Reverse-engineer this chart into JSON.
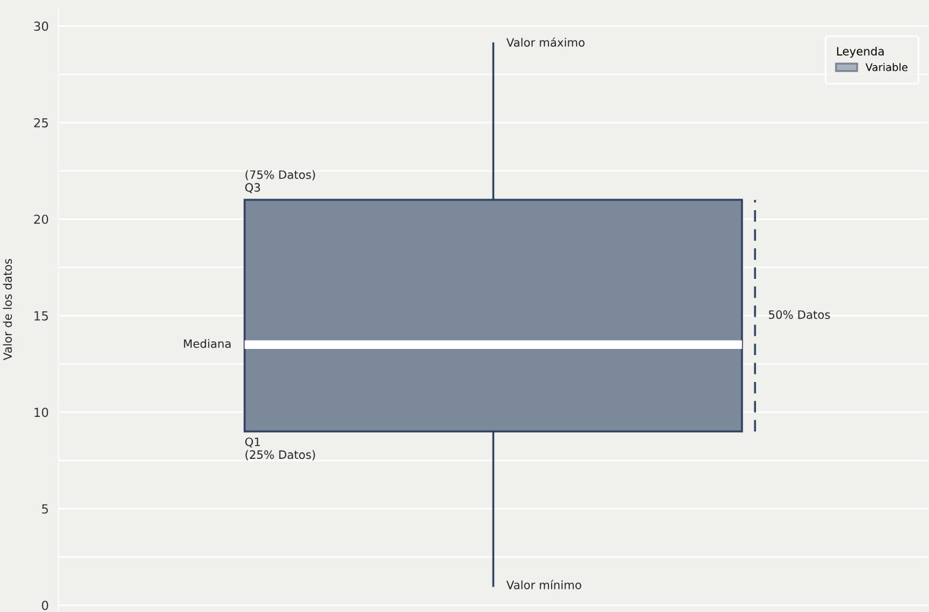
{
  "chart_data": {
    "type": "box",
    "categories": [
      null
    ],
    "ylabel": "Valor de los datos",
    "legend_title": "Leyenda",
    "legend": "top right",
    "grid": "y",
    "tick_labels": "y",
    "ylim": [
      -0.35,
      31
    ],
    "yticks": [
      0,
      {
        "value": 2.5,
        "label": null
      },
      5,
      {
        "value": 7.5,
        "label": null
      },
      10,
      {
        "value": 12.5,
        "label": null
      },
      15,
      {
        "value": 17.5,
        "label": null
      },
      20,
      {
        "value": 22.5,
        "label": null
      },
      25,
      {
        "value": 27.5,
        "label": null
      },
      30
    ],
    "series": [
      {
        "name": "Variable",
        "color": "#7b899b",
        "boxes": [
          {
            "low": 1,
            "q1": 9,
            "median": 13.5,
            "q3": 21,
            "high": 29.1
          }
        ]
      }
    ],
    "annotations": [
      "Valor máximo",
      "(75% Datos)\nQ3",
      "Mediana",
      "50% Datos",
      "Q1\n(25% Datos)",
      "Valor mínimo"
    ]
  }
}
